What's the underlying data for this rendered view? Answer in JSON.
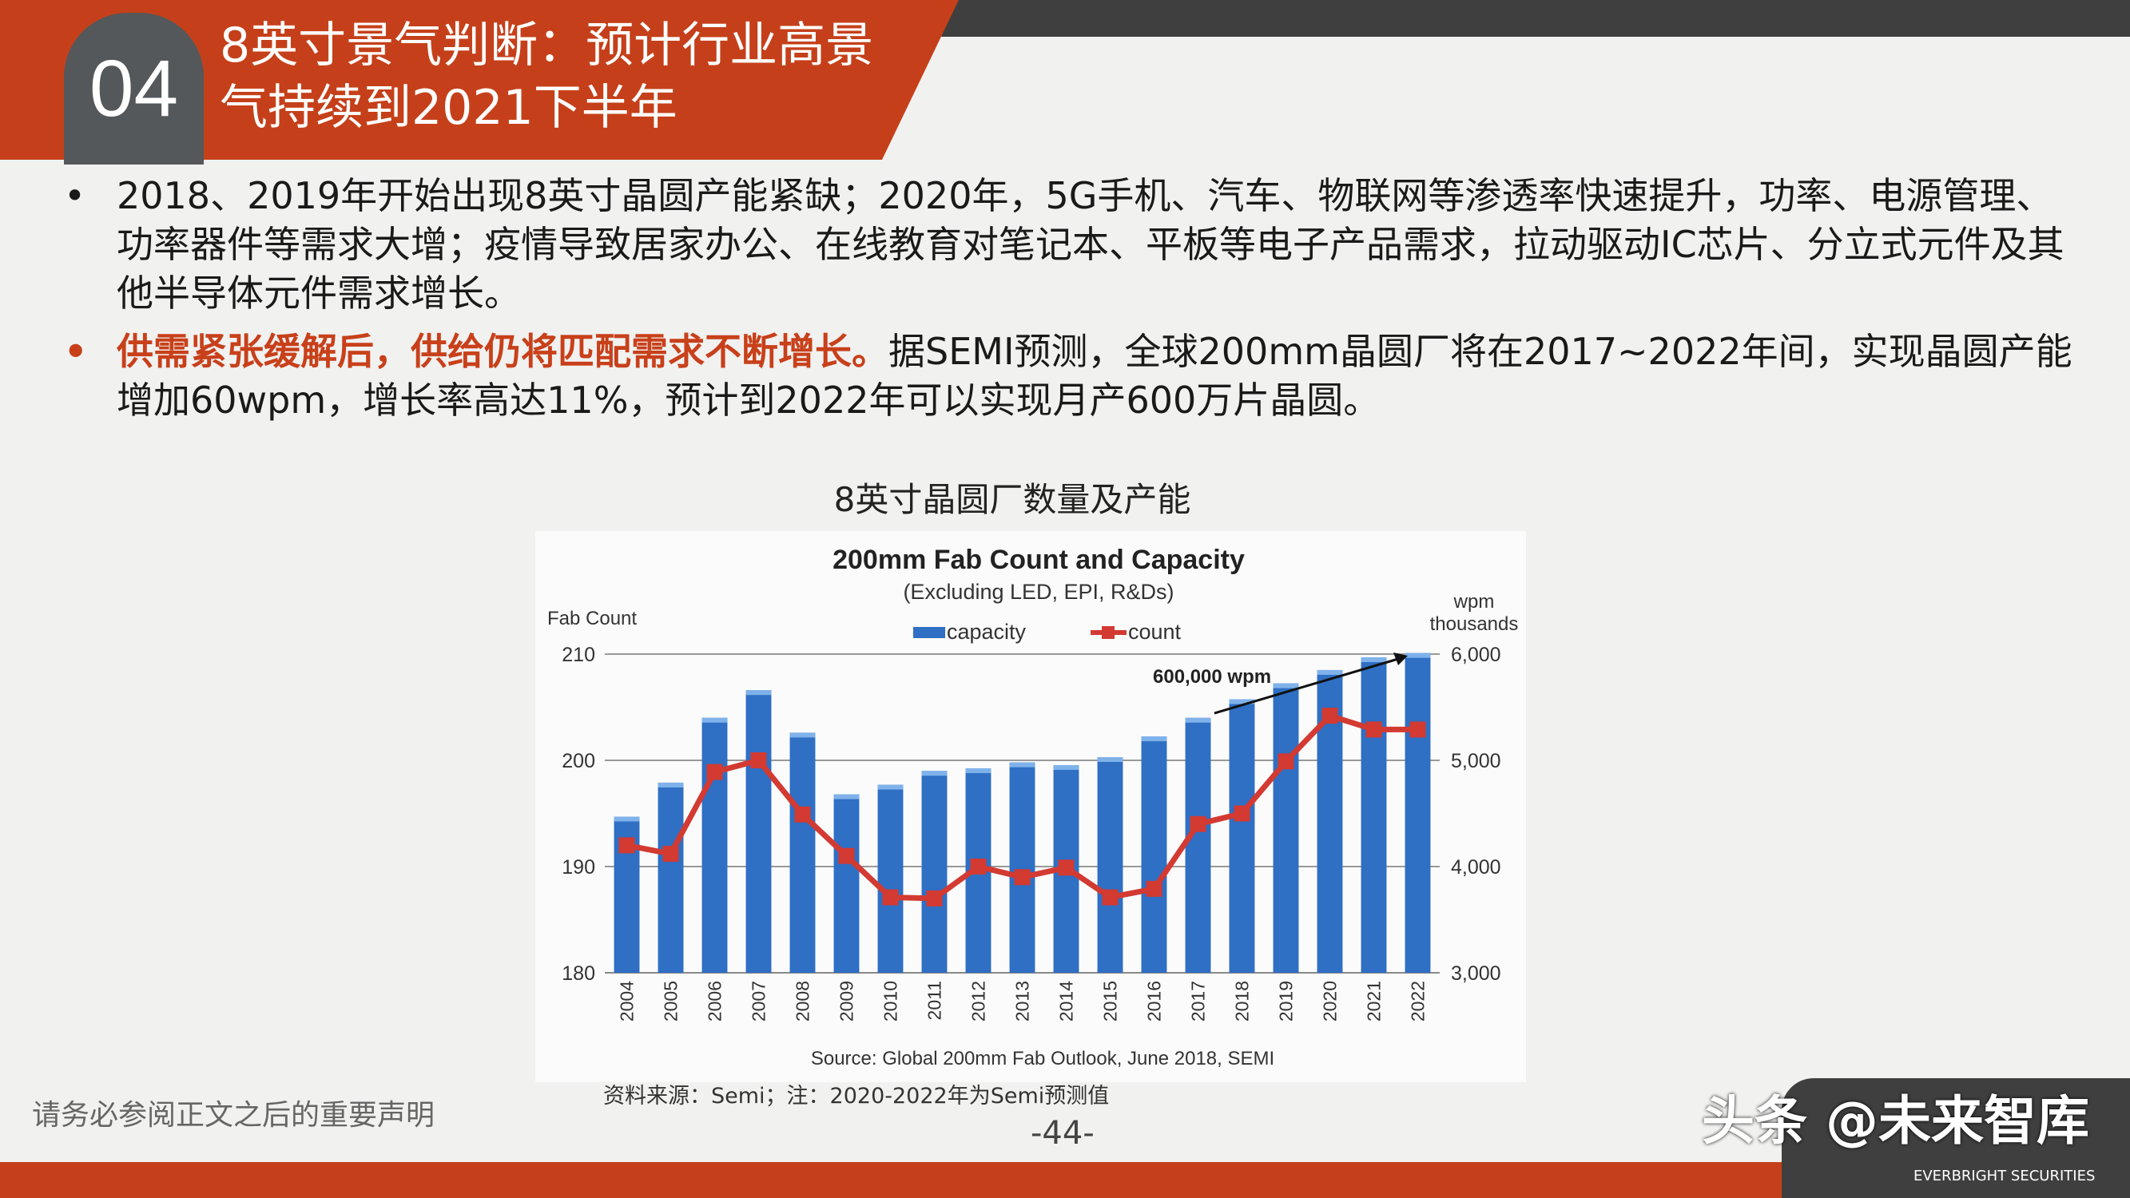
{
  "header": {
    "section_number": "04",
    "title_line1": "8英寸景气判断：预计行业高景",
    "title_line2": "气持续到2021下半年"
  },
  "bullets": [
    {
      "marker": "•",
      "text": "2018、2019年开始出现8英寸晶圆产能紧缺；2020年，5G手机、汽车、物联网等渗透率快速提升，功率、电源管理、功率器件等需求大增；疫情导致居家办公、在线教育对笔记本、平板等电子产品需求，拉动驱动IC芯片、分立式元件及其他半导体元件需求增长。"
    },
    {
      "marker": "•",
      "highlight": "供需紧张缓解后，供给仍将匹配需求不断增长。",
      "text": "据SEMI预测，全球200mm晶圆厂将在2017~2022年间，实现晶圆产能增加60wpm，增长率高达11%，预计到2022年可以实现月产600万片晶圆。"
    }
  ],
  "chart_caption": "8英寸晶圆厂数量及产能",
  "chart_data": {
    "type": "bar",
    "title": "200mm Fab Count and Capacity",
    "subtitle": "(Excluding LED, EPI, R&Ds)",
    "ylabel_left": "Fab Count",
    "ylabel_right_1": "wpm",
    "ylabel_right_2": "thousands",
    "ylim_left": [
      180,
      210
    ],
    "ylim_right": [
      3000,
      6000
    ],
    "yticks_left": [
      "180",
      "190",
      "200",
      "210"
    ],
    "yticks_right": [
      "3,000",
      "4,000",
      "5,000",
      "6,000"
    ],
    "legend": [
      "capacity",
      "count"
    ],
    "legend_position": "top-center",
    "annotation": "600,000 wpm",
    "source": "Source: Global 200mm Fab Outlook, June 2018, SEMI",
    "categories": [
      "2004",
      "2005",
      "2006",
      "2007",
      "2008",
      "2009",
      "2010",
      "2011",
      "2012",
      "2013",
      "2014",
      "2015",
      "2016",
      "2017",
      "2018",
      "2019",
      "2020",
      "2021",
      "2022"
    ],
    "series": [
      {
        "name": "capacity",
        "axis": "right",
        "type": "bar",
        "color": "#2f6fc4",
        "values": [
          4470,
          4790,
          5400,
          5660,
          5260,
          4680,
          4770,
          4900,
          4925,
          4980,
          4955,
          5030,
          5225,
          5400,
          5575,
          5725,
          5850,
          5970,
          6010
        ]
      },
      {
        "name": "count",
        "axis": "left",
        "type": "line",
        "color": "#d23a32",
        "values": [
          192,
          191.2,
          198.9,
          200,
          194.9,
          191,
          187.1,
          187,
          190,
          189,
          189.9,
          187.1,
          187.9,
          194,
          195,
          199.9,
          204.2,
          202.9,
          202.9
        ]
      }
    ]
  },
  "footer": {
    "disclaimer": "请务必参阅正文之后的重要声明",
    "source_note": "资料来源：Semi；注：2020-2022年为Semi预测值",
    "page": "-44-",
    "watermark": "头条 @未来智库",
    "logo_sub": "EVERBRIGHT SECURITIES"
  }
}
